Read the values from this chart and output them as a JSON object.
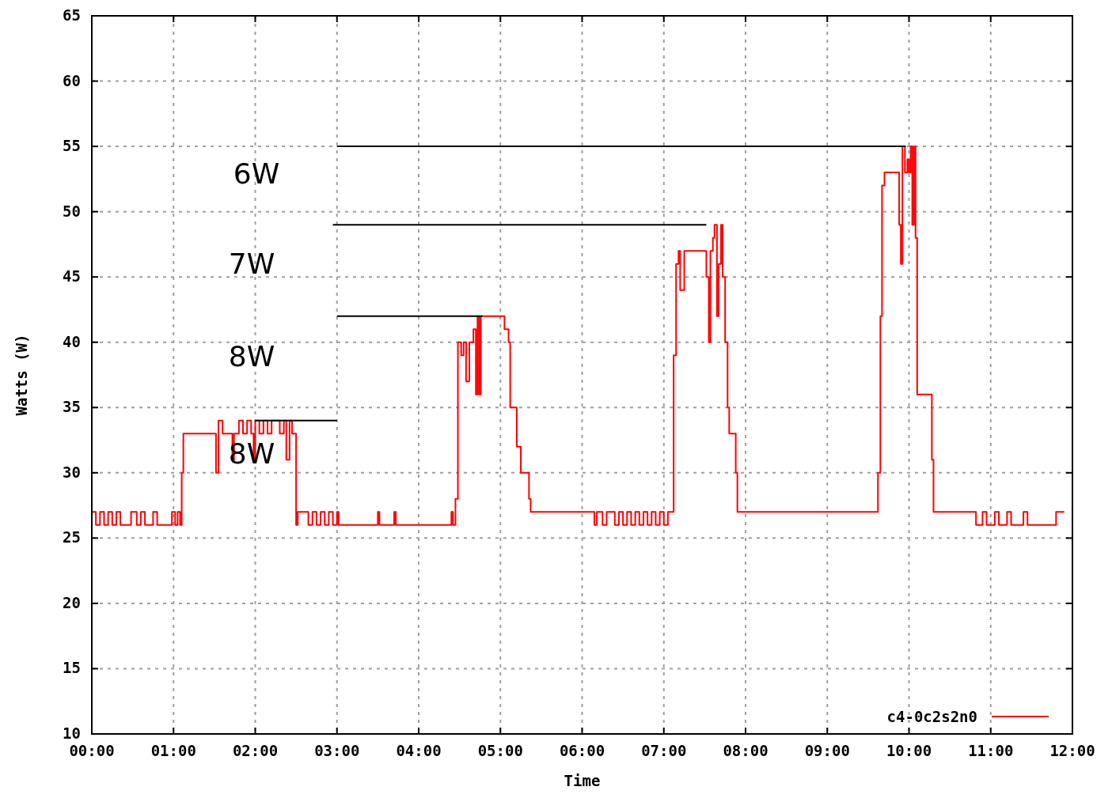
{
  "chart_data": {
    "type": "step",
    "xlabel": "Time",
    "ylabel": "Watts (W)",
    "xlim": [
      0,
      12
    ],
    "ylim": [
      10,
      65
    ],
    "xticks": [
      {
        "value": 0,
        "label": "00:00"
      },
      {
        "value": 1,
        "label": "01:00"
      },
      {
        "value": 2,
        "label": "02:00"
      },
      {
        "value": 3,
        "label": "03:00"
      },
      {
        "value": 4,
        "label": "04:00"
      },
      {
        "value": 5,
        "label": "05:00"
      },
      {
        "value": 6,
        "label": "06:00"
      },
      {
        "value": 7,
        "label": "07:00"
      },
      {
        "value": 8,
        "label": "08:00"
      },
      {
        "value": 9,
        "label": "09:00"
      },
      {
        "value": 10,
        "label": "10:00"
      },
      {
        "value": 11,
        "label": "11:00"
      },
      {
        "value": 12,
        "label": "12:00"
      }
    ],
    "yticks": [
      10,
      15,
      20,
      25,
      30,
      35,
      40,
      45,
      50,
      55,
      60,
      65
    ],
    "grid": true,
    "legend": "bottom right",
    "series": [
      {
        "name": "c4-0c2s2n0",
        "color": "#ff0000",
        "x": [
          0,
          0.05,
          0.1,
          0.15,
          0.2,
          0.25,
          0.3,
          0.35,
          0.48,
          0.55,
          0.6,
          0.65,
          0.75,
          0.8,
          0.98,
          1.02,
          1.05,
          1.08,
          1.1,
          1.12,
          1.52,
          1.55,
          1.6,
          1.72,
          1.74,
          1.8,
          1.85,
          1.9,
          1.95,
          1.98,
          2.0,
          2.05,
          2.1,
          2.15,
          2.2,
          2.3,
          2.35,
          2.38,
          2.42,
          2.45,
          2.5,
          2.52,
          2.65,
          2.7,
          2.75,
          2.8,
          2.85,
          2.9,
          2.95,
          3.0,
          3.02,
          3.5,
          3.52,
          3.7,
          3.72,
          4.4,
          4.42,
          4.45,
          4.48,
          4.52,
          4.55,
          4.58,
          4.62,
          4.67,
          4.7,
          4.72,
          4.74,
          4.76,
          5.0,
          5.05,
          5.1,
          5.12,
          5.2,
          5.25,
          5.35,
          5.37,
          6.15,
          6.18,
          6.25,
          6.3,
          6.4,
          6.45,
          6.5,
          6.55,
          6.6,
          6.65,
          6.7,
          6.75,
          6.8,
          6.85,
          6.9,
          6.95,
          7.0,
          7.05,
          7.1,
          7.12,
          7.15,
          7.18,
          7.2,
          7.25,
          7.5,
          7.52,
          7.55,
          7.57,
          7.6,
          7.62,
          7.65,
          7.67,
          7.7,
          7.72,
          7.75,
          7.78,
          7.8,
          7.88,
          7.9,
          9.6,
          9.62,
          9.65,
          9.67,
          9.7,
          9.85,
          9.88,
          9.9,
          9.92,
          9.95,
          9.98,
          10.0,
          10.02,
          10.04,
          10.06,
          10.08,
          10.1,
          10.25,
          10.28,
          10.3,
          10.8,
          10.82,
          10.9,
          10.95,
          11.05,
          11.1,
          11.2,
          11.25,
          11.4,
          11.45,
          11.8,
          11.85,
          11.9
        ],
        "values": [
          27,
          26,
          27,
          26,
          27,
          26,
          27,
          26,
          27,
          26,
          27,
          26,
          27,
          26,
          27,
          26,
          27,
          26,
          30,
          33,
          30,
          34,
          33,
          31,
          33,
          34,
          33,
          34,
          33,
          31,
          34,
          33,
          34,
          33,
          34,
          33,
          34,
          31,
          34,
          33,
          26,
          27,
          26,
          27,
          26,
          27,
          26,
          27,
          26,
          27,
          26,
          27,
          26,
          27,
          26,
          27,
          26,
          28,
          40,
          39,
          40,
          37,
          40,
          41,
          36,
          42,
          36,
          42,
          42,
          41,
          40,
          35,
          32,
          30,
          28,
          27,
          26,
          27,
          26,
          27,
          26,
          27,
          26,
          27,
          26,
          27,
          26,
          27,
          26,
          27,
          26,
          27,
          26,
          27,
          27,
          39,
          46,
          47,
          44,
          47,
          47,
          45,
          40,
          47,
          48,
          49,
          42,
          46,
          49,
          45,
          40,
          35,
          33,
          30,
          27,
          27,
          30,
          42,
          52,
          53,
          53,
          49,
          46,
          55,
          53,
          54,
          53,
          55,
          49,
          55,
          48,
          36,
          36,
          31,
          27,
          27,
          26,
          27,
          26,
          27,
          26,
          27,
          26,
          27,
          26,
          27,
          27,
          27
        ]
      },
      {
        "type": "line",
        "color": "#000000",
        "x": [
          2.0,
          3.0
        ],
        "values": [
          34,
          34
        ]
      },
      {
        "type": "line",
        "color": "#000000",
        "x": [
          3.0,
          4.78
        ],
        "values": [
          42,
          42
        ]
      },
      {
        "type": "line",
        "color": "#000000",
        "x": [
          2.95,
          7.52
        ],
        "values": [
          49,
          49
        ]
      },
      {
        "type": "line",
        "color": "#000000",
        "x": [
          3.0,
          9.96
        ],
        "values": [
          55,
          55
        ]
      }
    ],
    "annotations": [
      "6W",
      "7W",
      "8W",
      "8W"
    ]
  }
}
